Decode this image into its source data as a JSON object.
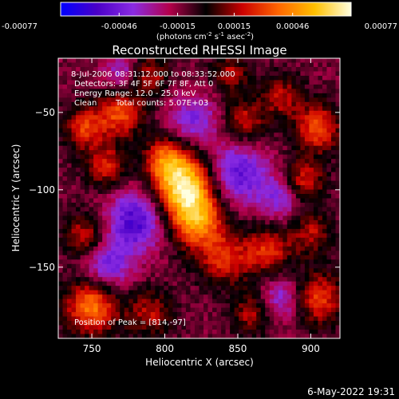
{
  "colorbar": {
    "tick_labels": [
      "-0.00077",
      "-0.00046",
      "-0.00015",
      "0.00015",
      "0.00046",
      "0.00077"
    ],
    "tick_values": [
      -0.00077,
      -0.00046,
      -0.00015,
      0.00015,
      0.00046,
      0.00077
    ],
    "range": [
      -0.00077,
      0.00077
    ],
    "units": "(photons cm",
    "units_exp1": "-2",
    "units_mid": " s",
    "units_exp2": "-1",
    "units_mid2": " asec",
    "units_exp3": "-2",
    "units_end": ")",
    "stops": [
      "#0000ff",
      "#4a00c8",
      "#8a2be2",
      "#b4004a",
      "#000000",
      "#cc0000",
      "#ff6600",
      "#ffc000",
      "#ffffe0"
    ]
  },
  "chart_data": {
    "type": "heatmap",
    "title": "Reconstructed RHESSI Image",
    "xlabel": "Heliocentric X (arcsec)",
    "ylabel": "Heliocentric Y (arcsec)",
    "xlim": [
      727,
      920
    ],
    "ylim": [
      -196,
      -15
    ],
    "x_ticks": [
      750,
      800,
      850,
      900
    ],
    "y_ticks": [
      -50,
      -100,
      -150
    ],
    "x_tick_labels": [
      "750",
      "800",
      "850",
      "900"
    ],
    "y_tick_labels": [
      "−50",
      "−100",
      "−150"
    ],
    "annotations": [
      "8-Jul-2006 08:31:12.000 to 08:33:52.000",
      "Detectors: 3F 4F 5F 6F 7F 8F, Att 0",
      "Energy Range: 12.0 - 25.0 keV",
      "Clean",
      "Total counts: 5.07E+03"
    ],
    "peak_label": "Position of Peak = [814,-97]",
    "peak": [
      814,
      -97
    ],
    "sources": [
      {
        "x": 813,
        "y": -97,
        "amp": 0.00077,
        "r": 14
      },
      {
        "x": 822,
        "y": -120,
        "amp": 0.00055,
        "r": 13
      },
      {
        "x": 800,
        "y": -80,
        "amp": 0.0004,
        "r": 10
      },
      {
        "x": 840,
        "y": -145,
        "amp": 0.00035,
        "r": 12
      },
      {
        "x": 870,
        "y": -140,
        "amp": 0.00038,
        "r": 12
      },
      {
        "x": 905,
        "y": -170,
        "amp": 0.00042,
        "r": 12
      },
      {
        "x": 900,
        "y": -128,
        "amp": 0.0003,
        "r": 10
      },
      {
        "x": 895,
        "y": -95,
        "amp": 0.0004,
        "r": 10
      },
      {
        "x": 905,
        "y": -60,
        "amp": 0.00045,
        "r": 11
      },
      {
        "x": 880,
        "y": -40,
        "amp": 0.0003,
        "r": 10
      },
      {
        "x": 855,
        "y": -55,
        "amp": 0.00032,
        "r": 10
      },
      {
        "x": 770,
        "y": -50,
        "amp": 0.00045,
        "r": 11
      },
      {
        "x": 745,
        "y": -60,
        "amp": 0.0004,
        "r": 10
      },
      {
        "x": 760,
        "y": -85,
        "amp": 0.00035,
        "r": 10
      },
      {
        "x": 745,
        "y": -130,
        "amp": 0.00035,
        "r": 10
      },
      {
        "x": 750,
        "y": -175,
        "amp": 0.00055,
        "r": 13
      },
      {
        "x": 790,
        "y": -180,
        "amp": 0.0003,
        "r": 11
      },
      {
        "x": 860,
        "y": -180,
        "amp": 0.0003,
        "r": 10
      },
      {
        "x": 790,
        "y": -25,
        "amp": 0.0003,
        "r": 9
      },
      {
        "x": 845,
        "y": -25,
        "amp": 0.00028,
        "r": 9
      },
      {
        "x": 780,
        "y": -120,
        "amp": -0.00045,
        "r": 14
      },
      {
        "x": 760,
        "y": -150,
        "amp": -0.00035,
        "r": 12
      },
      {
        "x": 850,
        "y": -90,
        "amp": -0.0004,
        "r": 14
      },
      {
        "x": 880,
        "y": -105,
        "amp": -0.0003,
        "r": 11
      },
      {
        "x": 820,
        "y": -55,
        "amp": -0.0003,
        "r": 12
      },
      {
        "x": 880,
        "y": -170,
        "amp": -0.0003,
        "r": 11
      },
      {
        "x": 770,
        "y": -25,
        "amp": -0.00025,
        "r": 9
      }
    ]
  },
  "footer": {
    "date": "6-May-2022 19:31"
  }
}
